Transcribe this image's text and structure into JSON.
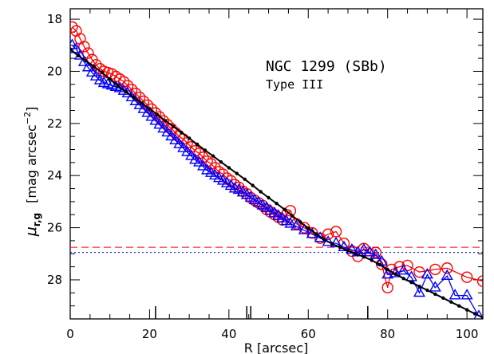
{
  "chart_data": {
    "type": "scatter",
    "xlim": [
      0,
      104
    ],
    "ylim": [
      29.5,
      17.6
    ],
    "y_inverted": true,
    "xlabel": "R [arcsec]",
    "ylabel_main": "μ",
    "ylabel_sub": "r,g",
    "ylabel_units": "[mag arcsec",
    "ylabel_exp": "−2",
    "ylabel_close": "]",
    "x_ticks": [
      0,
      20,
      40,
      60,
      80,
      100
    ],
    "y_ticks": [
      18,
      20,
      22,
      24,
      26,
      28
    ],
    "annotations": {
      "title": "NGC 1299 (SBb)",
      "subtitle": "Type III"
    },
    "colors": {
      "r": "#ff0000",
      "g": "#0000ff",
      "model": "#000000"
    },
    "break_markers_x": [
      21.5,
      44.5,
      45.5,
      75.0
    ],
    "sky_limits": [
      {
        "band": "r",
        "value": 26.75,
        "style": "dashed"
      },
      {
        "band": "g",
        "value": 26.95,
        "style": "dotted"
      }
    ],
    "series": [
      {
        "band": "r",
        "marker": "circle",
        "x": [
          0.5,
          1.5,
          2.5,
          3.5,
          4.5,
          5.5,
          6.5,
          7.5,
          8.5,
          9.5,
          10.5,
          11.5,
          12.5,
          13.5,
          14.5,
          15.5,
          16.5,
          17.5,
          18.5,
          19.5,
          20.5,
          21.5,
          22.5,
          23.5,
          24.5,
          25.5,
          26.5,
          27.5,
          28.5,
          29.5,
          30.5,
          31.5,
          32.5,
          33.5,
          34.5,
          35.5,
          36.5,
          37.5,
          38.5,
          39.5,
          40.5,
          41.5,
          42.5,
          43.5,
          44.5,
          45.5,
          46.5,
          47.5,
          48.5,
          49.5,
          50.5,
          51.5,
          52.5,
          53.5,
          54.5,
          55.5,
          57,
          59,
          61,
          63,
          65,
          67,
          69,
          71,
          72.5,
          74,
          75.5,
          77,
          78.5,
          80,
          81,
          83,
          85,
          88,
          92,
          95,
          100,
          104
        ],
        "y": [
          18.3,
          18.45,
          18.75,
          19.05,
          19.3,
          19.55,
          19.75,
          19.9,
          20.0,
          20.05,
          20.1,
          20.2,
          20.3,
          20.4,
          20.55,
          20.7,
          20.85,
          21.0,
          21.15,
          21.3,
          21.45,
          21.6,
          21.75,
          21.9,
          22.05,
          22.2,
          22.35,
          22.5,
          22.6,
          22.75,
          22.9,
          23.05,
          23.15,
          23.3,
          23.45,
          23.55,
          23.7,
          23.85,
          23.95,
          24.1,
          24.2,
          24.35,
          24.45,
          24.6,
          24.7,
          24.85,
          24.95,
          25.05,
          25.15,
          25.3,
          25.4,
          25.5,
          25.6,
          25.7,
          25.5,
          25.35,
          25.85,
          26.0,
          26.2,
          26.4,
          26.25,
          26.15,
          26.6,
          26.9,
          27.1,
          26.8,
          27.0,
          26.95,
          27.4,
          28.3,
          27.6,
          27.5,
          27.45,
          27.7,
          27.6,
          27.55,
          27.9,
          28.05
        ]
      },
      {
        "band": "g",
        "marker": "triangle",
        "x": [
          0.5,
          1.5,
          2.5,
          3.5,
          4.5,
          5.5,
          6.5,
          7.5,
          8.5,
          9.5,
          10.5,
          11.5,
          12.5,
          13.5,
          14.5,
          15.5,
          16.5,
          17.5,
          18.5,
          19.5,
          20.5,
          21.5,
          22.5,
          23.5,
          24.5,
          25.5,
          26.5,
          27.5,
          28.5,
          29.5,
          30.5,
          31.5,
          32.5,
          33.5,
          34.5,
          35.5,
          36.5,
          37.5,
          38.5,
          39.5,
          40.5,
          41.5,
          42.5,
          43.5,
          44.5,
          45.5,
          46.5,
          47.5,
          48.5,
          49.5,
          50.5,
          51.5,
          52.5,
          53.5,
          54.5,
          55.5,
          57,
          59,
          61,
          63,
          65,
          67,
          69,
          71,
          72.5,
          74,
          75.5,
          77,
          78.5,
          80,
          82,
          84,
          86,
          88,
          90,
          92,
          95,
          97,
          100,
          103
        ],
        "y": [
          19.0,
          19.15,
          19.4,
          19.65,
          19.85,
          20.05,
          20.2,
          20.35,
          20.45,
          20.5,
          20.55,
          20.6,
          20.65,
          20.75,
          20.85,
          21.0,
          21.15,
          21.3,
          21.45,
          21.6,
          21.75,
          21.9,
          22.05,
          22.2,
          22.35,
          22.5,
          22.65,
          22.8,
          22.95,
          23.1,
          23.25,
          23.4,
          23.5,
          23.65,
          23.8,
          23.9,
          24.0,
          24.1,
          24.2,
          24.3,
          24.4,
          24.5,
          24.55,
          24.65,
          24.75,
          24.85,
          24.95,
          25.05,
          25.15,
          25.25,
          25.35,
          25.45,
          25.55,
          25.65,
          25.75,
          25.85,
          25.95,
          26.1,
          26.25,
          26.4,
          26.55,
          26.6,
          26.75,
          26.85,
          26.95,
          26.85,
          26.95,
          27.05,
          27.3,
          27.8,
          27.75,
          27.65,
          27.9,
          28.5,
          27.8,
          28.3,
          27.85,
          28.6,
          28.6,
          29.4
        ]
      },
      {
        "band": "model",
        "marker": "dot",
        "x": [
          0,
          2,
          4,
          6,
          8,
          10,
          12,
          14,
          16,
          18,
          20,
          22,
          24,
          26,
          28,
          30,
          32,
          34,
          36,
          38,
          40,
          42,
          44,
          46,
          48,
          50,
          52,
          54,
          56,
          58,
          60,
          62,
          64,
          66,
          68,
          70,
          72,
          74,
          76,
          78,
          80,
          82,
          84,
          86,
          88,
          90,
          92,
          94,
          96,
          98,
          100,
          102,
          104
        ],
        "y": [
          19.15,
          19.4,
          19.6,
          19.82,
          20.04,
          20.3,
          20.55,
          20.78,
          21.0,
          21.22,
          21.44,
          21.67,
          21.9,
          22.12,
          22.34,
          22.57,
          22.8,
          23.03,
          23.25,
          23.48,
          23.7,
          23.92,
          24.14,
          24.38,
          24.62,
          24.85,
          25.07,
          25.3,
          25.55,
          25.78,
          26.02,
          26.24,
          26.45,
          26.62,
          26.75,
          26.88,
          27.0,
          27.12,
          27.25,
          27.42,
          27.6,
          27.78,
          27.95,
          28.1,
          28.25,
          28.4,
          28.55,
          28.7,
          28.85,
          29.0,
          29.15,
          29.3,
          29.45
        ]
      }
    ]
  }
}
